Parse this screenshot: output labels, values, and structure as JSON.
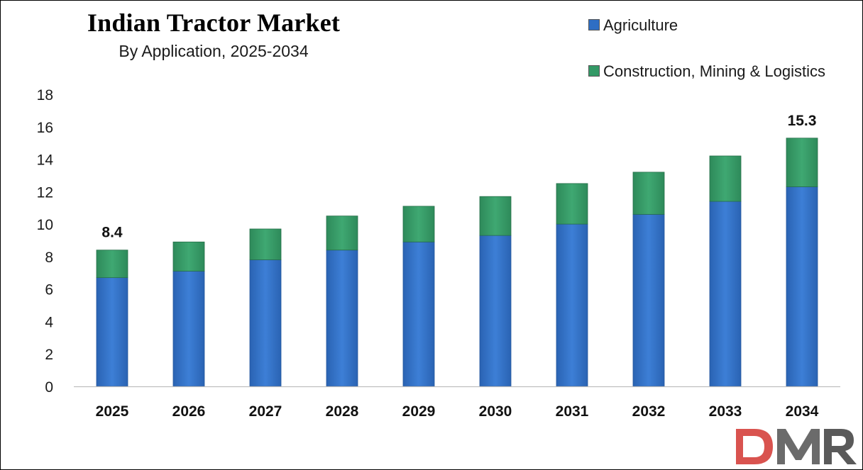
{
  "chart_data": {
    "type": "bar",
    "stacked": true,
    "title": "Indian Tractor Market",
    "subtitle": "By Application, 2025-2034",
    "categories": [
      "2025",
      "2026",
      "2027",
      "2028",
      "2029",
      "2030",
      "2031",
      "2032",
      "2033",
      "2034"
    ],
    "series": [
      {
        "name": "Agriculture",
        "color": "#2E6EC4",
        "values": [
          6.7,
          7.1,
          7.8,
          8.4,
          8.9,
          9.3,
          10.0,
          10.6,
          11.4,
          12.3
        ]
      },
      {
        "name": "Construction, Mining & Logistics",
        "color": "#339966",
        "values": [
          1.7,
          1.8,
          1.9,
          2.1,
          2.2,
          2.4,
          2.5,
          2.6,
          2.8,
          3.0
        ]
      }
    ],
    "data_labels": [
      {
        "category": "2025",
        "text": "8.4"
      },
      {
        "category": "2034",
        "text": "15.3"
      }
    ],
    "y_ticks": [
      "0",
      "2",
      "4",
      "6",
      "8",
      "10",
      "12",
      "14",
      "16",
      "18"
    ],
    "ylim": [
      0,
      18
    ],
    "xlabel": "",
    "ylabel": "",
    "grid": false,
    "legend_position": "top-right"
  },
  "logo": {
    "text": "DMR",
    "colors": {
      "d": "#D9534F",
      "m": "#6B6B6B",
      "r": "#5A5A5A"
    }
  }
}
